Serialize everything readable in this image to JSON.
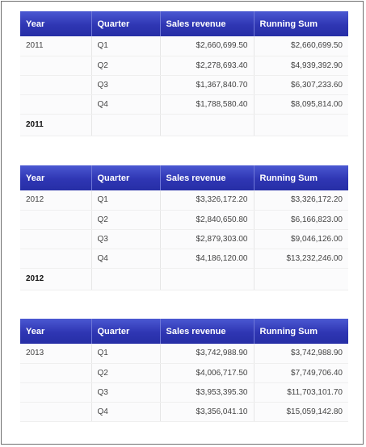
{
  "columns": {
    "year": "Year",
    "quarter": "Quarter",
    "sales": "Sales revenue",
    "running_sum": "Running Sum"
  },
  "blocks": [
    {
      "year": "2011",
      "total_label": "2011",
      "rows": [
        {
          "quarter": "Q1",
          "sales": "$2,660,699.50",
          "running_sum": "$2,660,699.50"
        },
        {
          "quarter": "Q2",
          "sales": "$2,278,693.40",
          "running_sum": "$4,939,392.90"
        },
        {
          "quarter": "Q3",
          "sales": "$1,367,840.70",
          "running_sum": "$6,307,233.60"
        },
        {
          "quarter": "Q4",
          "sales": "$1,788,580.40",
          "running_sum": "$8,095,814.00"
        }
      ]
    },
    {
      "year": "2012",
      "total_label": "2012",
      "rows": [
        {
          "quarter": "Q1",
          "sales": "$3,326,172.20",
          "running_sum": "$3,326,172.20"
        },
        {
          "quarter": "Q2",
          "sales": "$2,840,650.80",
          "running_sum": "$6,166,823.00"
        },
        {
          "quarter": "Q3",
          "sales": "$2,879,303.00",
          "running_sum": "$9,046,126.00"
        },
        {
          "quarter": "Q4",
          "sales": "$4,186,120.00",
          "running_sum": "$13,232,246.00"
        }
      ]
    },
    {
      "year": "2013",
      "rows": [
        {
          "quarter": "Q1",
          "sales": "$3,742,988.90",
          "running_sum": "$3,742,988.90"
        },
        {
          "quarter": "Q2",
          "sales": "$4,006,717.50",
          "running_sum": "$7,749,706.40"
        },
        {
          "quarter": "Q3",
          "sales": "$3,953,395.30",
          "running_sum": "$11,703,101.70"
        },
        {
          "quarter": "Q4",
          "sales": "$3,356,041.10",
          "running_sum": "$15,059,142.80"
        }
      ]
    }
  ]
}
